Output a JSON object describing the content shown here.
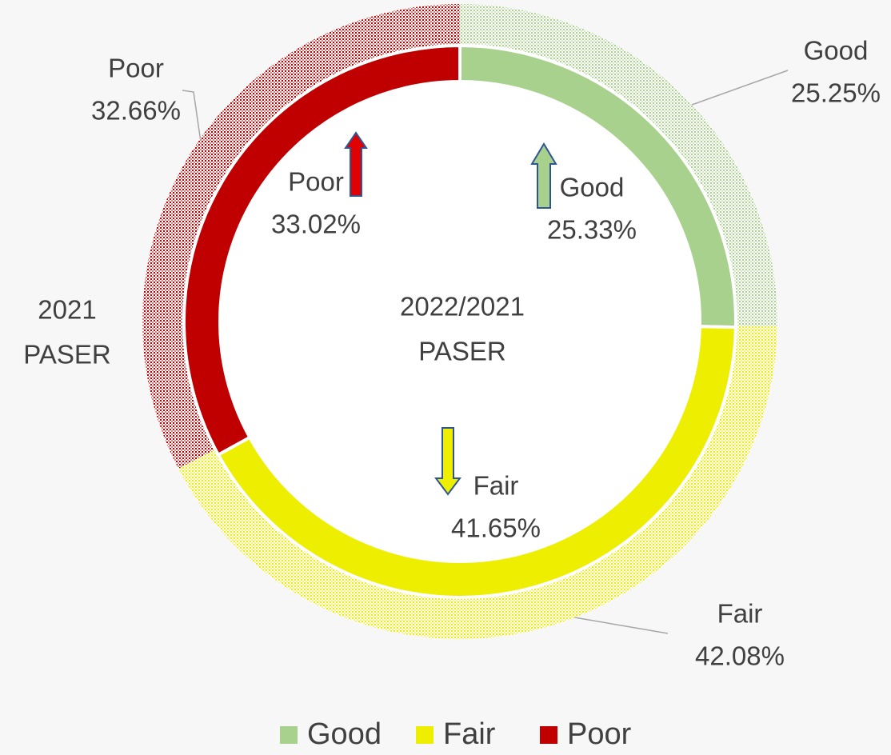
{
  "chart_data": {
    "type": "donut",
    "categories": [
      "Good",
      "Fair",
      "Poor"
    ],
    "colors": [
      "#a9d18e",
      "#eeee00",
      "#c00000"
    ],
    "series": [
      {
        "values": [
          25.33,
          41.65,
          33.02
        ],
        "value_labels": [
          "25.33%",
          "41.65%",
          "33.02%"
        ]
      },
      {
        "values": [
          25.25,
          42.08,
          32.66
        ],
        "value_labels": [
          "25.25%",
          "42.08%",
          "32.66%"
        ]
      }
    ],
    "center_label": [
      "2022/2021",
      "PASER"
    ],
    "outer_ring_label": [
      "2021",
      "PASER"
    ],
    "legend": "bottom"
  }
}
